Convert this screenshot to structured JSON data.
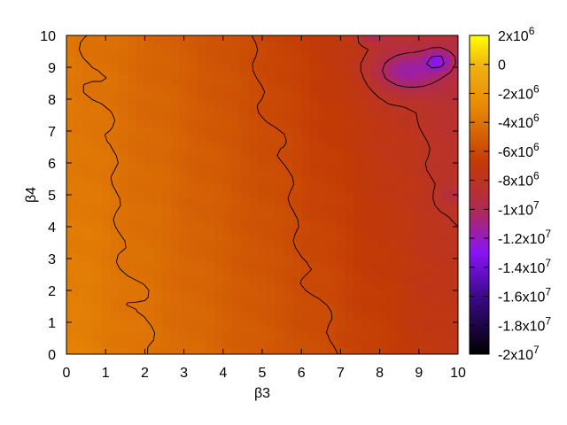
{
  "chart_data": {
    "type": "heatmap",
    "title": "",
    "xlabel": "β3",
    "ylabel": "β4",
    "xlim": [
      0,
      10
    ],
    "ylim": [
      0,
      10
    ],
    "x_ticks": [
      "0",
      "1",
      "2",
      "3",
      "4",
      "5",
      "6",
      "7",
      "8",
      "9",
      "10"
    ],
    "y_ticks": [
      "0",
      "1",
      "2",
      "3",
      "4",
      "5",
      "6",
      "7",
      "8",
      "9",
      "10"
    ],
    "colorbar": {
      "range": [
        -20000000,
        2000000
      ],
      "palette": "black-purple-red-orange-yellow",
      "tick_values": [
        2000000,
        0,
        -2000000,
        -4000000,
        -6000000,
        -8000000,
        -10000000,
        -12000000,
        -14000000,
        -16000000,
        -18000000,
        -20000000
      ],
      "tick_mantissa": [
        "2",
        "0",
        "-2",
        "-4",
        "-6",
        "-8",
        "-1",
        "-1.2",
        "-1.4",
        "-1.6",
        "-1.8",
        "-2"
      ],
      "tick_exponent": [
        "6",
        "",
        "6",
        "6",
        "6",
        "6",
        "7",
        "7",
        "7",
        "7",
        "7",
        "7"
      ],
      "tick_base": "x10"
    },
    "contour_levels": [
      -4000000,
      -6000000,
      -8000000,
      -10000000,
      -12000000,
      -14000000
    ],
    "grid": false,
    "legend": "colorbar-right",
    "z_model": {
      "description_units": "z in data units over β3 (x) and β4 (y)",
      "anchor_values": [
        {
          "x": 0.5,
          "y": 5,
          "z": -3800000
        },
        {
          "x": 1.5,
          "y": 2.5,
          "z": -3300000
        },
        {
          "x": 5,
          "y": 5,
          "z": -5500000
        },
        {
          "x": 7,
          "y": 8,
          "z": -7200000
        },
        {
          "x": 8.5,
          "y": 8.8,
          "z": -11500000
        },
        {
          "x": 9.5,
          "y": 9.2,
          "z": -13000000
        },
        {
          "x": 9.8,
          "y": 5,
          "z": -9200000
        },
        {
          "x": 10,
          "y": 0,
          "z": -6500000
        }
      ]
    }
  }
}
